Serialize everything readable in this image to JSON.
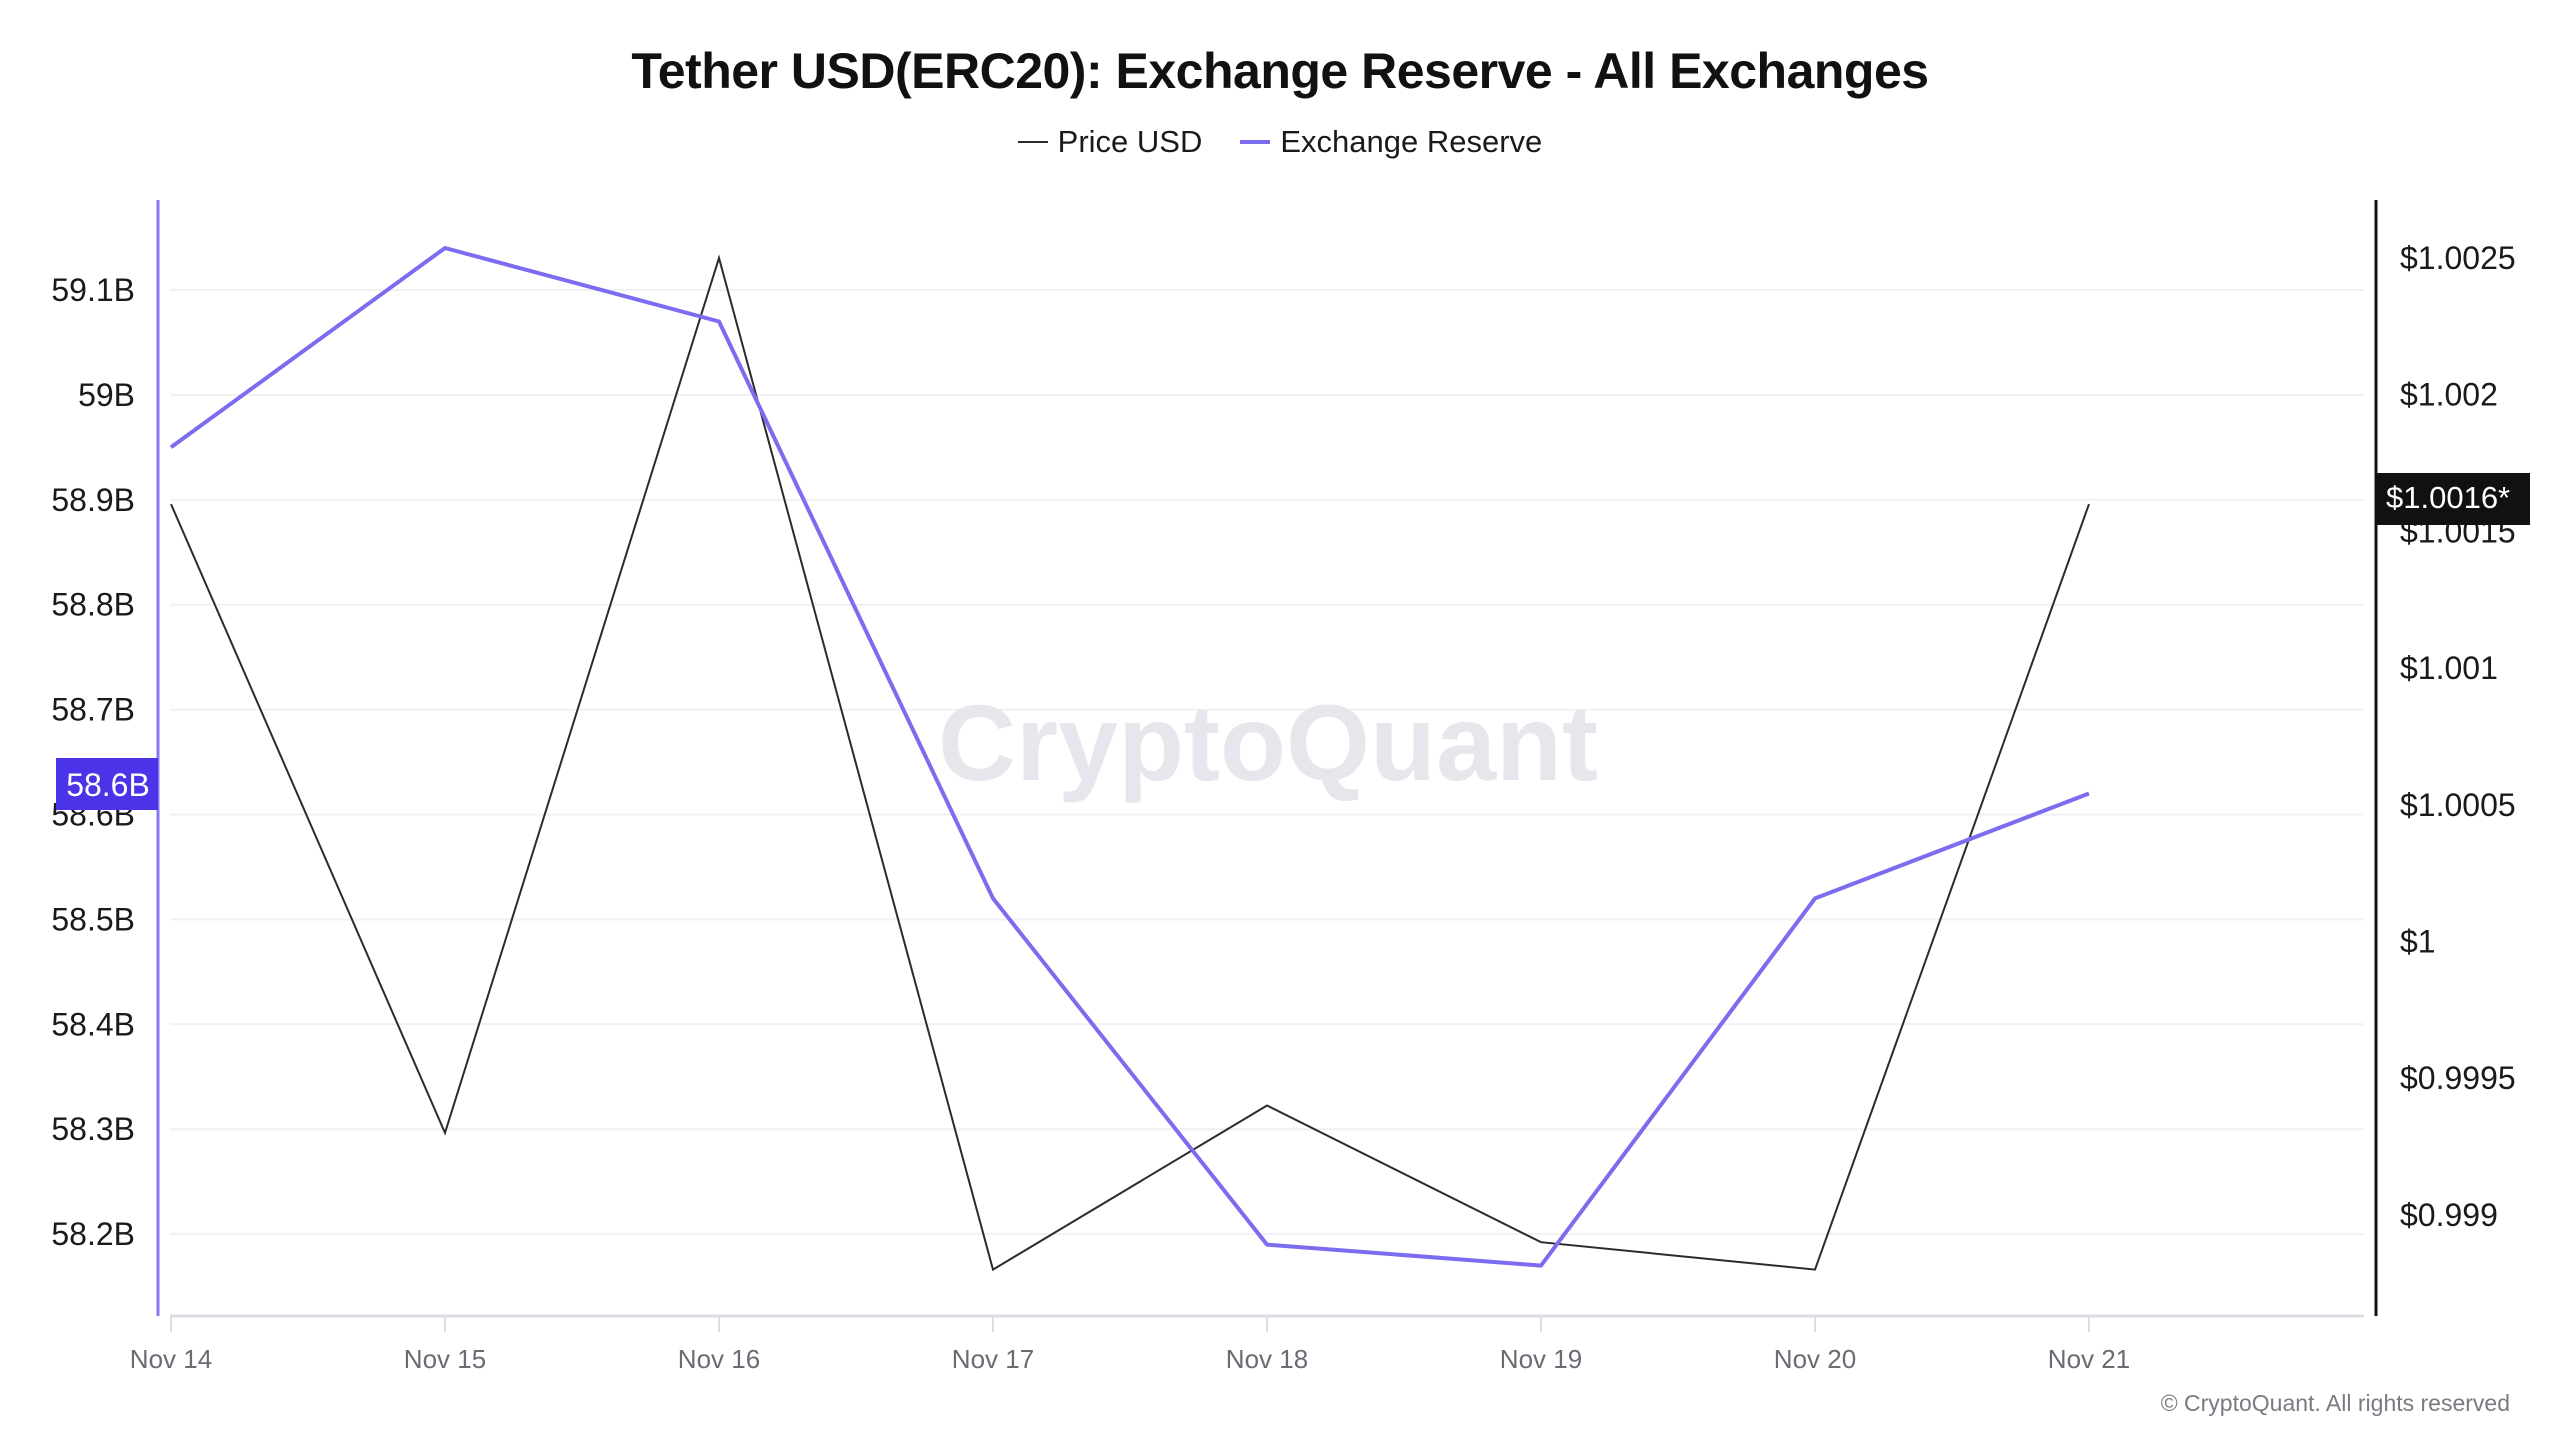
{
  "header": {
    "title": "Tether USD(ERC20): Exchange Reserve - All Exchanges"
  },
  "legend": [
    {
      "label": "Price USD",
      "color": "#2b2b2b"
    },
    {
      "label": "Exchange Reserve",
      "color": "#7b6cf0"
    }
  ],
  "watermark": "CryptoQuant",
  "footer": {
    "copyright": "© CryptoQuant. All rights reserved"
  },
  "crosshair": {
    "left_label": "58.6B",
    "left_label_bg": "#4b33e8",
    "right_label": "$1.0016*",
    "right_label_bg": "#111111"
  },
  "chart_data": {
    "type": "line",
    "title": "Tether USD(ERC20): Exchange Reserve - All Exchanges",
    "xlabel": "",
    "categories": [
      "Nov 14",
      "Nov 15",
      "Nov 16",
      "Nov 17",
      "Nov 18",
      "Nov 19",
      "Nov 20",
      "Nov 21"
    ],
    "series": [
      {
        "name": "Exchange Reserve",
        "axis": "left",
        "color": "#7b6cf0",
        "values": [
          58.95,
          59.14,
          59.07,
          58.52,
          58.19,
          58.17,
          58.52,
          58.62
        ],
        "unit": "B"
      },
      {
        "name": "Price USD",
        "axis": "right",
        "color": "#2b2b2b",
        "values": [
          1.0016,
          0.9993,
          1.0025,
          0.9988,
          0.9994,
          0.9989,
          0.9988,
          1.0016
        ],
        "unit": "$"
      }
    ],
    "left_axis": {
      "ticks": [
        "59.1B",
        "59B",
        "58.9B",
        "58.8B",
        "58.7B",
        "58.6B",
        "58.5B",
        "58.4B",
        "58.3B",
        "58.2B"
      ],
      "tick_values": [
        59.1,
        59.0,
        58.9,
        58.8,
        58.7,
        58.6,
        58.5,
        58.4,
        58.3,
        58.2
      ],
      "ylim": [
        58.12,
        59.19
      ]
    },
    "right_axis": {
      "ticks": [
        "$1.0025",
        "$1.002",
        "$1.0015",
        "$1.001",
        "$1.0005",
        "$1",
        "$0.9995",
        "$0.999"
      ],
      "tick_values": [
        1.0025,
        1.002,
        1.0015,
        1.001,
        1.0005,
        1.0,
        0.9995,
        0.999
      ],
      "ylim": [
        0.99862,
        1.00268
      ]
    },
    "grid": true,
    "legend_position": "top"
  }
}
